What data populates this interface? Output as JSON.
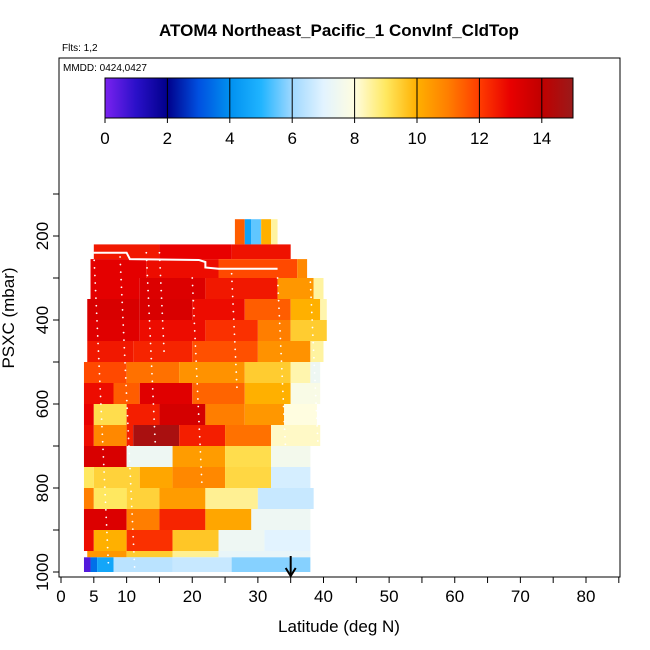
{
  "chart_data": {
    "type": "heatmap",
    "title": "ATOM4 Northeast_Pacific_1 ConvInf_CldTop",
    "subtitle_flights": "Flts: 1,2",
    "subtitle_dates": "MMDD: 0424,0427",
    "xlabel": "Latitude (deg N)",
    "ylabel": "PSXC (mbar)",
    "xlim": [
      0,
      85
    ],
    "ylim": [
      1000,
      100
    ],
    "x_ticks": [
      0,
      10,
      20,
      30,
      40,
      50,
      60,
      70,
      80
    ],
    "x_tick_labels": [
      "0",
      "10",
      "20",
      "30",
      "40",
      "50",
      "60",
      "70",
      "80"
    ],
    "x_extra_tick": 5,
    "x_extra_tick_label": "5",
    "y_ticks": [
      200,
      400,
      600,
      800,
      1000
    ],
    "y_tick_labels": [
      "200",
      "400",
      "600",
      "800",
      "1000"
    ],
    "colorbar": {
      "range": [
        0,
        15
      ],
      "ticks": [
        0,
        2,
        4,
        6,
        8,
        10,
        12,
        14
      ],
      "tick_labels": [
        "0",
        "2",
        "4",
        "6",
        "8",
        "10",
        "12",
        "14"
      ],
      "stops": [
        {
          "v": 0,
          "c": "#7a22f0"
        },
        {
          "v": 1,
          "c": "#2a10c8"
        },
        {
          "v": 2,
          "c": "#00008b"
        },
        {
          "v": 3,
          "c": "#0050e0"
        },
        {
          "v": 4,
          "c": "#0090f0"
        },
        {
          "v": 5,
          "c": "#20b4ff"
        },
        {
          "v": 6,
          "c": "#9fd8ff"
        },
        {
          "v": 7,
          "c": "#e2f3ff"
        },
        {
          "v": 8,
          "c": "#fffde0"
        },
        {
          "v": 9,
          "c": "#ffe860"
        },
        {
          "v": 10,
          "c": "#ffb000"
        },
        {
          "v": 11,
          "c": "#ff7e00"
        },
        {
          "v": 12,
          "c": "#ff3c00"
        },
        {
          "v": 13,
          "c": "#e80000"
        },
        {
          "v": 14,
          "c": "#c00000"
        },
        {
          "v": 15,
          "c": "#9a1a1a"
        }
      ]
    },
    "layers": [
      {
        "p": [
          160,
          220
        ],
        "cells": [
          [
            26.5,
            28,
            11.5
          ],
          [
            28,
            29,
            4.5
          ],
          [
            29,
            30.5,
            5.5
          ],
          [
            30.5,
            32,
            10
          ],
          [
            32,
            33,
            8.5
          ]
        ]
      },
      {
        "p": [
          220,
          255
        ],
        "cells": [
          [
            5,
            15,
            12.6
          ],
          [
            15,
            26,
            13
          ],
          [
            26,
            35,
            12.7
          ]
        ]
      },
      {
        "p": [
          255,
          300
        ],
        "cells": [
          [
            4.5,
            13,
            13.1
          ],
          [
            13,
            24,
            12.8
          ],
          [
            24,
            36,
            11.8
          ],
          [
            36,
            37.5,
            10.8
          ]
        ]
      },
      {
        "p": [
          300,
          350
        ],
        "cells": [
          [
            4.5,
            12,
            13.1
          ],
          [
            12,
            22,
            13.3
          ],
          [
            22,
            33,
            12.6
          ],
          [
            33,
            38.5,
            10.5
          ],
          [
            38.5,
            40,
            8.5
          ]
        ]
      },
      {
        "p": [
          350,
          400
        ],
        "cells": [
          [
            4,
            12,
            13.4
          ],
          [
            12,
            20,
            13.4
          ],
          [
            20,
            28,
            12.8
          ],
          [
            28,
            35,
            11.5
          ],
          [
            35,
            39.5,
            10
          ],
          [
            39.5,
            40.5,
            8.4
          ]
        ]
      },
      {
        "p": [
          400,
          450
        ],
        "cells": [
          [
            4,
            12,
            13.2
          ],
          [
            12,
            22,
            12.8
          ],
          [
            22,
            30,
            12.2
          ],
          [
            30,
            35,
            11
          ],
          [
            35,
            40.5,
            9.5
          ]
        ]
      },
      {
        "p": [
          450,
          500
        ],
        "cells": [
          [
            4,
            11,
            12.6
          ],
          [
            11,
            20,
            12.4
          ],
          [
            20,
            30,
            11.7
          ],
          [
            30,
            38,
            10.6
          ],
          [
            38,
            40,
            8.5
          ]
        ]
      },
      {
        "p": [
          500,
          550
        ],
        "cells": [
          [
            3.5,
            10,
            11.8
          ],
          [
            10,
            18,
            11.2
          ],
          [
            18,
            28,
            10.6
          ],
          [
            28,
            35,
            9.5
          ],
          [
            35,
            38,
            8.4
          ],
          [
            38,
            39.5,
            7.4
          ]
        ]
      },
      {
        "p": [
          550,
          600
        ],
        "cells": [
          [
            3.5,
            8,
            12.8
          ],
          [
            8,
            12,
            11.5
          ],
          [
            12,
            20,
            13.2
          ],
          [
            20,
            28,
            11.4
          ],
          [
            28,
            35,
            10
          ],
          [
            35,
            39.5,
            7.8
          ]
        ]
      },
      {
        "p": [
          600,
          650
        ],
        "cells": [
          [
            3.5,
            5,
            13
          ],
          [
            5,
            10,
            9.2
          ],
          [
            10,
            15,
            12.5
          ],
          [
            15,
            22,
            13.5
          ],
          [
            22,
            28,
            11
          ],
          [
            28,
            34,
            10.5
          ],
          [
            34,
            39,
            8
          ]
        ]
      },
      {
        "p": [
          650,
          700
        ],
        "cells": [
          [
            3.5,
            5,
            12.8
          ],
          [
            5,
            10,
            10.8
          ],
          [
            10,
            11,
            12.5
          ],
          [
            11,
            18,
            14.6
          ],
          [
            18,
            25,
            12.5
          ],
          [
            25,
            32,
            11.2
          ],
          [
            32,
            39.5,
            8.2
          ]
        ]
      },
      {
        "p": [
          700,
          750
        ],
        "cells": [
          [
            3.5,
            10,
            13.4
          ],
          [
            10,
            17,
            7.4
          ],
          [
            17,
            25,
            10.4
          ],
          [
            25,
            32,
            9.2
          ],
          [
            32,
            38,
            7.6
          ]
        ]
      },
      {
        "p": [
          750,
          800
        ],
        "cells": [
          [
            3.5,
            5,
            9
          ],
          [
            5,
            12,
            9.4
          ],
          [
            12,
            17,
            10.2
          ],
          [
            17,
            25,
            10.8
          ],
          [
            25,
            32,
            9.3
          ],
          [
            32,
            38,
            6.8
          ]
        ]
      },
      {
        "p": [
          800,
          850
        ],
        "cells": [
          [
            3.5,
            5,
            11
          ],
          [
            5,
            10,
            9
          ],
          [
            10,
            15,
            9.4
          ],
          [
            15,
            22,
            10.4
          ],
          [
            22,
            30,
            8.6
          ],
          [
            30,
            38.5,
            6.6
          ]
        ]
      },
      {
        "p": [
          850,
          900
        ],
        "cells": [
          [
            3.5,
            10,
            13.3
          ],
          [
            10,
            15,
            11
          ],
          [
            15,
            22,
            12.4
          ],
          [
            22,
            29,
            10.2
          ],
          [
            29,
            38,
            7.4
          ]
        ]
      },
      {
        "p": [
          900,
          950
        ],
        "cells": [
          [
            3.5,
            5,
            12.8
          ],
          [
            5,
            10,
            10
          ],
          [
            10,
            17,
            12.2
          ],
          [
            17,
            24,
            9.6
          ],
          [
            24,
            31,
            7.4
          ],
          [
            31,
            38,
            7
          ]
        ]
      },
      {
        "p": [
          950,
          965
        ],
        "cells": [
          [
            4,
            10,
            10.5
          ],
          [
            10,
            17,
            9.5
          ],
          [
            17,
            24,
            8.6
          ],
          [
            24,
            38,
            7.2
          ]
        ]
      },
      {
        "p": [
          965,
          1000
        ],
        "cells": [
          [
            3.5,
            4.5,
            0.5
          ],
          [
            4.5,
            5.5,
            3.5
          ],
          [
            5.5,
            8,
            4.6
          ],
          [
            8,
            17,
            6.4
          ],
          [
            17,
            26,
            6.6
          ],
          [
            26,
            38,
            5.8
          ]
        ]
      }
    ],
    "overlay_line": [
      [
        5,
        240
      ],
      [
        10,
        240
      ],
      [
        10.5,
        255
      ],
      [
        21,
        257
      ],
      [
        22,
        262
      ],
      [
        22,
        275
      ],
      [
        24,
        278
      ],
      [
        33,
        278
      ]
    ],
    "arrow_latitude": 35
  }
}
